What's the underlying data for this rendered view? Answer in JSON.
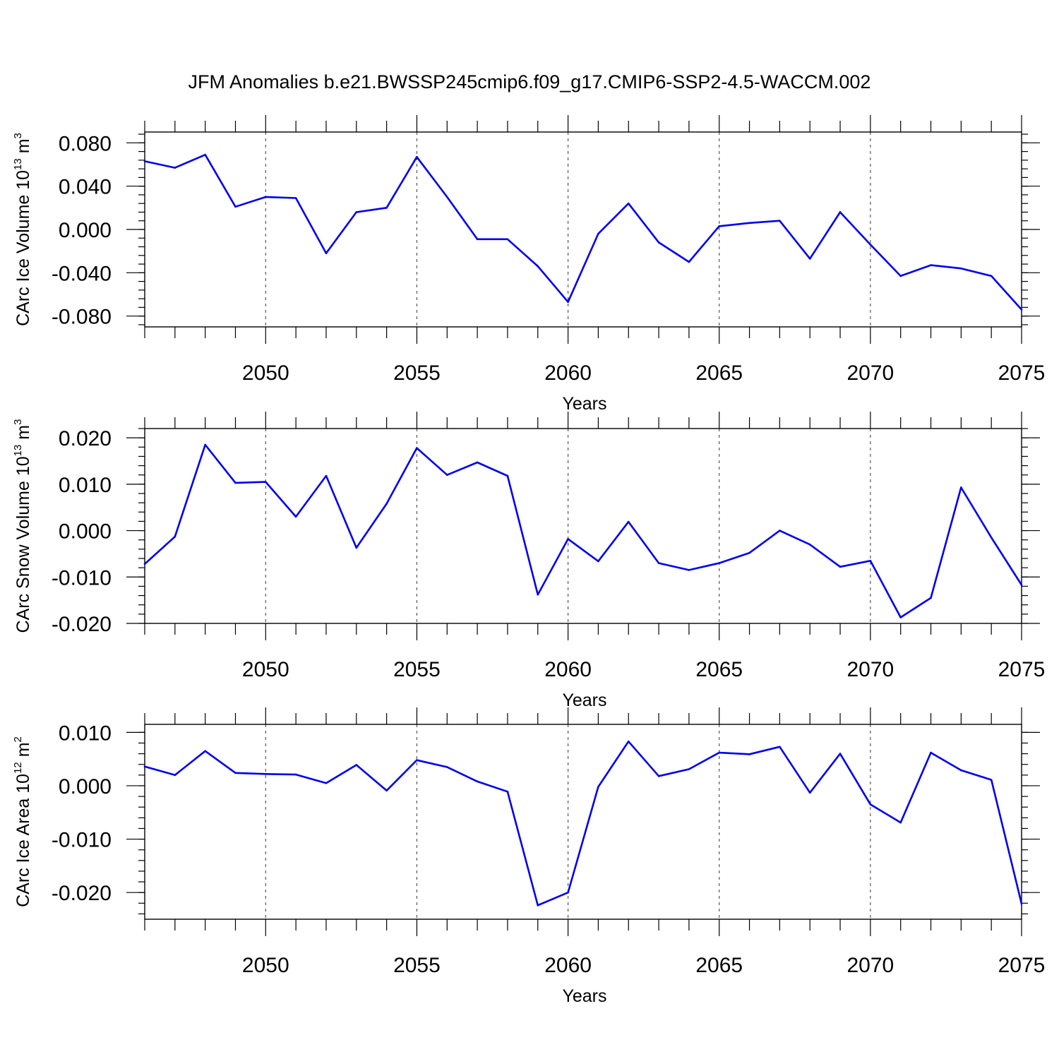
{
  "title": "JFM Anomalies b.e21.BWSSP245cmip6.f09_g17.CMIP6-SSP2-4.5-WACCM.002",
  "line_color": "#0000ee",
  "chart_data": [
    {
      "type": "line",
      "ylabel": {
        "main": "CArc Ice Volume 10",
        "exp": "13",
        "unit": " m",
        "unit_exp": "3"
      },
      "xlabel": "Years",
      "xlim": [
        2046,
        2075
      ],
      "ylim": [
        -0.09,
        0.09
      ],
      "x_tick_values": [
        2050,
        2055,
        2060,
        2065,
        2070,
        2075
      ],
      "x_tick_labels": [
        "2050",
        "2055",
        "2060",
        "2065",
        "2070",
        "2075"
      ],
      "y_tick_values": [
        0.08,
        0.04,
        0.0,
        -0.04,
        -0.08
      ],
      "y_tick_labels": [
        "0.080",
        "0.040",
        "0.000",
        "-0.040",
        "-0.080"
      ],
      "y_minor_step": 0.008,
      "grid_x": [
        2050,
        2055,
        2060,
        2065,
        2070
      ],
      "x": [
        2046,
        2047,
        2048,
        2049,
        2050,
        2051,
        2052,
        2053,
        2054,
        2055,
        2056,
        2057,
        2058,
        2059,
        2060,
        2061,
        2062,
        2063,
        2064,
        2065,
        2066,
        2067,
        2068,
        2069,
        2070,
        2071,
        2072,
        2073,
        2074,
        2075
      ],
      "values": [
        0.063,
        0.057,
        0.069,
        0.021,
        0.03,
        0.029,
        -0.022,
        0.016,
        0.02,
        0.067,
        0.03,
        -0.009,
        -0.009,
        -0.034,
        -0.067,
        -0.004,
        0.024,
        -0.012,
        -0.03,
        0.003,
        0.006,
        0.008,
        -0.027,
        0.016,
        -0.014,
        -0.043,
        -0.033,
        -0.036,
        -0.043,
        -0.074
      ]
    },
    {
      "type": "line",
      "ylabel": {
        "main": "CArc Snow Volume 10",
        "exp": "13",
        "unit": " m",
        "unit_exp": "3"
      },
      "xlabel": "Years",
      "xlim": [
        2046,
        2075
      ],
      "ylim": [
        -0.02,
        0.022
      ],
      "x_tick_values": [
        2050,
        2055,
        2060,
        2065,
        2070,
        2075
      ],
      "x_tick_labels": [
        "2050",
        "2055",
        "2060",
        "2065",
        "2070",
        "2075"
      ],
      "y_tick_values": [
        0.02,
        0.01,
        0.0,
        -0.01,
        -0.02
      ],
      "y_tick_labels": [
        "0.020",
        "0.010",
        "0.000",
        "-0.010",
        "-0.020"
      ],
      "y_minor_step": 0.002,
      "grid_x": [
        2050,
        2055,
        2060,
        2065,
        2070
      ],
      "x": [
        2046,
        2047,
        2048,
        2049,
        2050,
        2051,
        2052,
        2053,
        2054,
        2055,
        2056,
        2057,
        2058,
        2059,
        2060,
        2061,
        2062,
        2063,
        2064,
        2065,
        2066,
        2067,
        2068,
        2069,
        2070,
        2071,
        2072,
        2073,
        2074,
        2075
      ],
      "values": [
        -0.0072,
        -0.0013,
        0.0185,
        0.0103,
        0.0105,
        0.003,
        0.0118,
        -0.0037,
        0.0058,
        0.0178,
        0.012,
        0.0147,
        0.0118,
        -0.0138,
        -0.0018,
        -0.0066,
        0.0019,
        -0.007,
        -0.0085,
        -0.007,
        -0.0048,
        0.0,
        -0.003,
        -0.0078,
        -0.0065,
        -0.0187,
        -0.0145,
        0.0093,
        -0.0015,
        -0.0117
      ]
    },
    {
      "type": "line",
      "ylabel": {
        "main": "CArc Ice Area 10",
        "exp": "12",
        "unit": " m",
        "unit_exp": "2"
      },
      "xlabel": "Years",
      "xlim": [
        2046,
        2075
      ],
      "ylim": [
        -0.025,
        0.0115
      ],
      "x_tick_values": [
        2050,
        2055,
        2060,
        2065,
        2070,
        2075
      ],
      "x_tick_labels": [
        "2050",
        "2055",
        "2060",
        "2065",
        "2070",
        "2075"
      ],
      "y_tick_values": [
        0.01,
        0.0,
        -0.01,
        -0.02
      ],
      "y_tick_labels": [
        "0.010",
        "0.000",
        "-0.010",
        "-0.020"
      ],
      "y_minor_step": 0.002,
      "grid_x": [
        2050,
        2055,
        2060,
        2065,
        2070
      ],
      "x": [
        2046,
        2047,
        2048,
        2049,
        2050,
        2051,
        2052,
        2053,
        2054,
        2055,
        2056,
        2057,
        2058,
        2059,
        2060,
        2061,
        2062,
        2063,
        2064,
        2065,
        2066,
        2067,
        2068,
        2069,
        2070,
        2071,
        2072,
        2073,
        2074,
        2075
      ],
      "values": [
        0.0036,
        0.002,
        0.0065,
        0.0024,
        0.0022,
        0.0021,
        0.0005,
        0.0039,
        -0.0009,
        0.0048,
        0.0035,
        0.0008,
        -0.0011,
        -0.0224,
        -0.02,
        -0.0002,
        0.0083,
        0.0018,
        0.0031,
        0.0062,
        0.0059,
        0.0073,
        -0.0013,
        0.006,
        -0.0035,
        -0.0069,
        0.0062,
        0.0029,
        0.0011,
        -0.0221
      ]
    }
  ]
}
